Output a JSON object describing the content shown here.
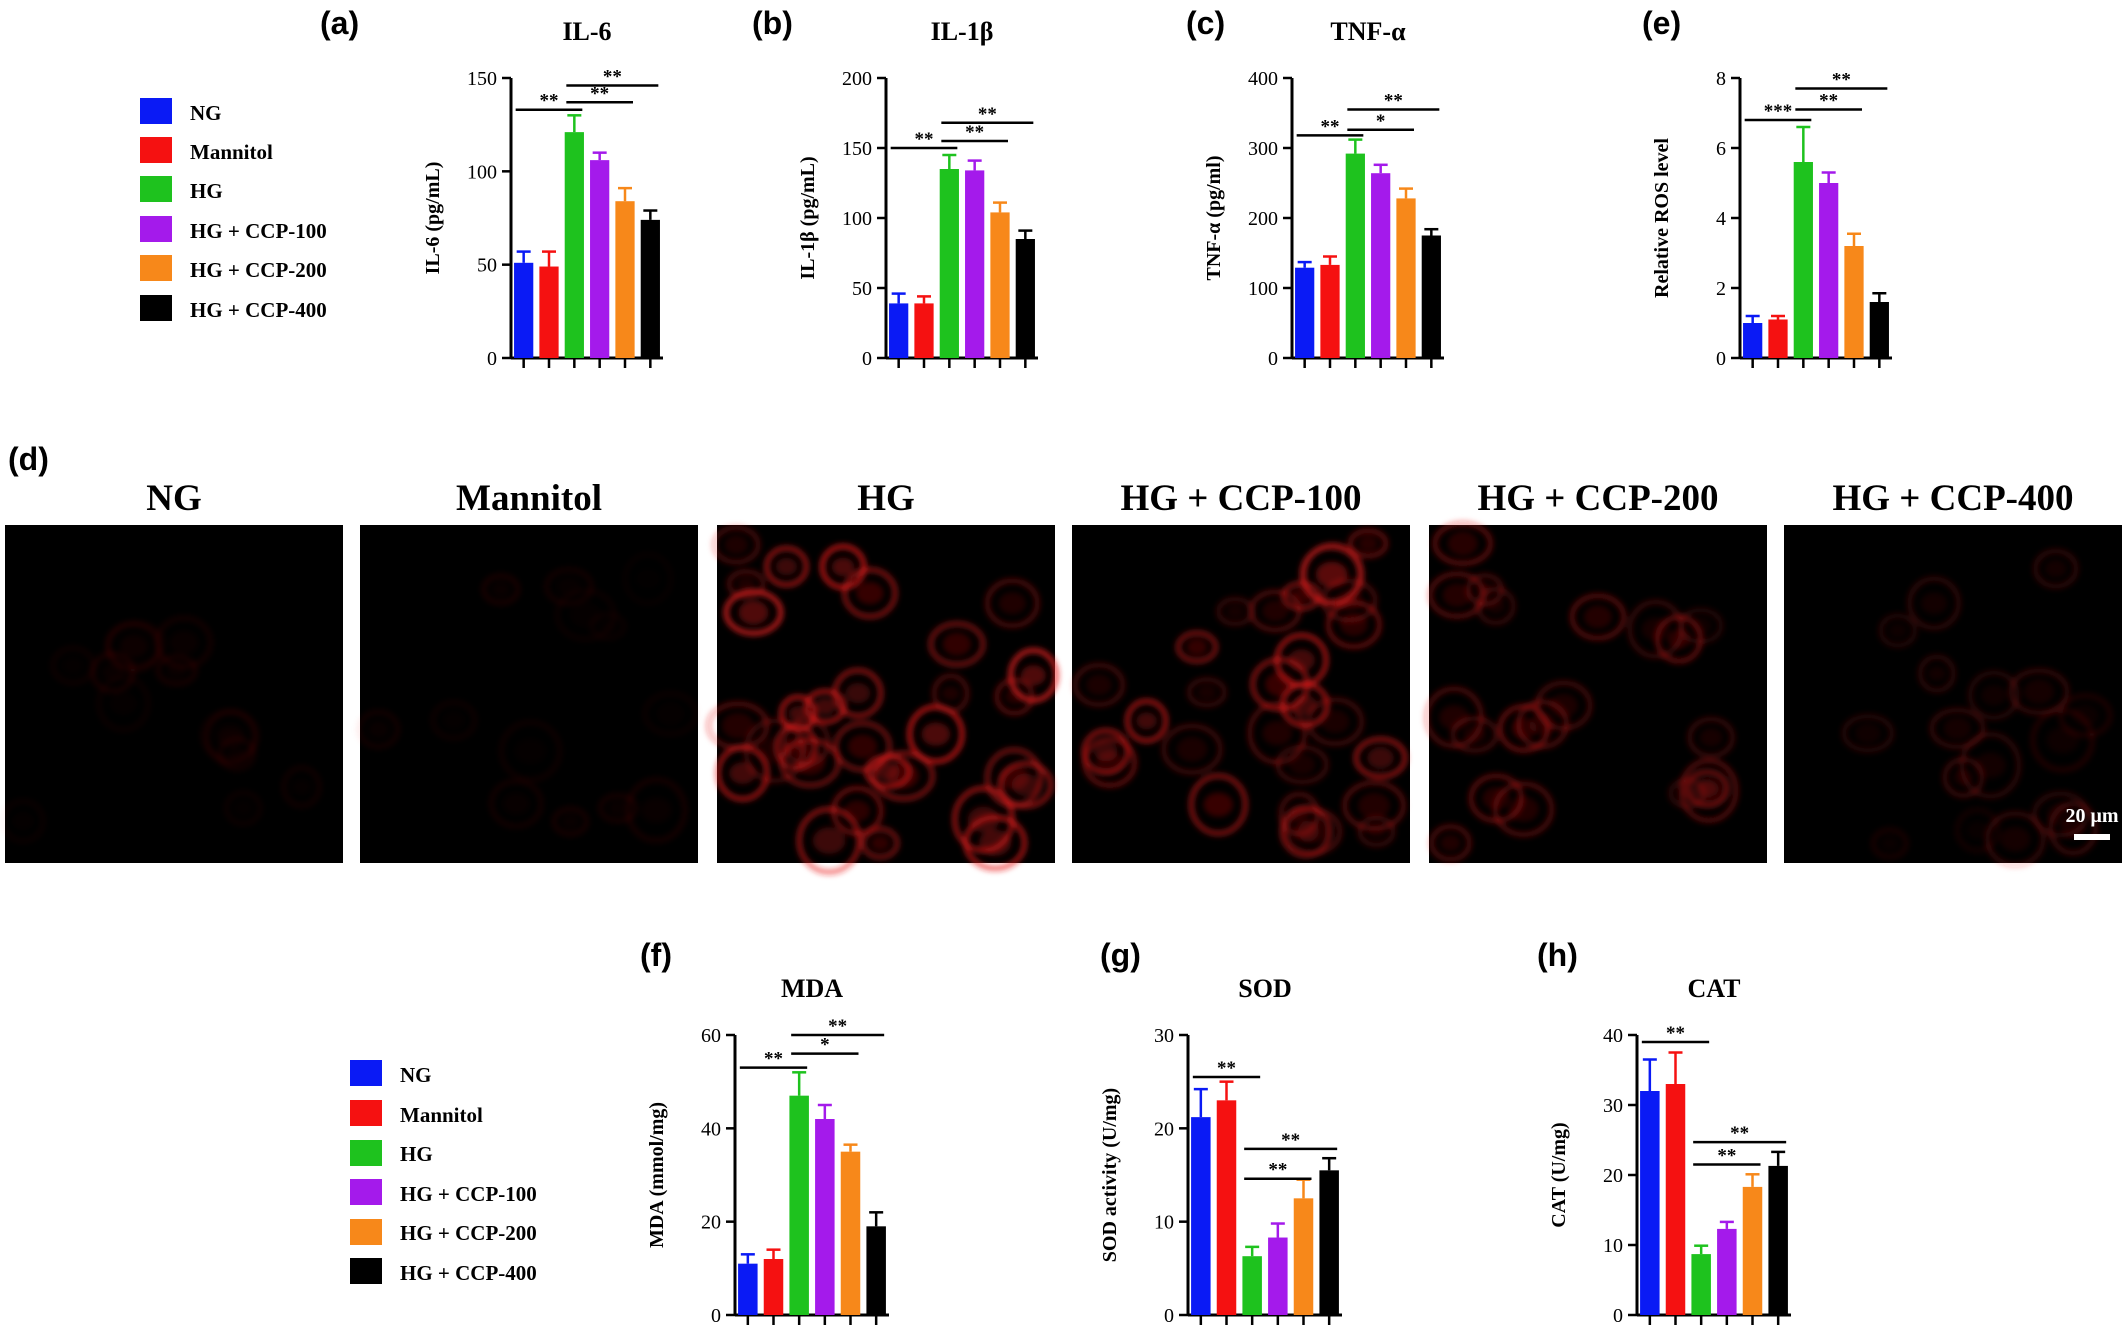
{
  "groups": [
    "NG",
    "Mannitol",
    "HG",
    "HG + CCP-100",
    "HG + CCP-200",
    "HG + CCP-400"
  ],
  "colors": [
    "#0a1af5",
    "#f51111",
    "#1ec21e",
    "#a41aeb",
    "#f7881a",
    "#000000"
  ],
  "chart_data": [
    {
      "panel": "(a)",
      "type": "bar",
      "title": "IL-6",
      "ylabel": "IL-6 (pg/mL)",
      "ylim": [
        0,
        150
      ],
      "yticks": [
        0,
        50,
        100,
        150
      ],
      "categories": [
        "NG",
        "Mannitol",
        "HG",
        "HG + CCP-100",
        "HG + CCP-200",
        "HG + CCP-400"
      ],
      "values": [
        51,
        49,
        121,
        106,
        84,
        74
      ],
      "errors": [
        6,
        8,
        9,
        4,
        7,
        5
      ],
      "significance": [
        {
          "from": 0,
          "to": 2,
          "label": "**",
          "y": 133
        },
        {
          "from": 2,
          "to": 4,
          "label": "**",
          "y": 137
        },
        {
          "from": 2,
          "to": 5,
          "label": "**",
          "y": 146
        }
      ]
    },
    {
      "panel": "(b)",
      "type": "bar",
      "title": "IL-1β",
      "ylabel": "IL-1β (pg/mL)",
      "ylim": [
        0,
        200
      ],
      "yticks": [
        0,
        50,
        100,
        150,
        200
      ],
      "categories": [
        "NG",
        "Mannitol",
        "HG",
        "HG + CCP-100",
        "HG + CCP-200",
        "HG + CCP-400"
      ],
      "values": [
        39,
        39,
        135,
        134,
        104,
        85
      ],
      "errors": [
        7,
        5,
        10,
        7,
        7,
        6
      ],
      "significance": [
        {
          "from": 0,
          "to": 2,
          "label": "**",
          "y": 150
        },
        {
          "from": 2,
          "to": 4,
          "label": "**",
          "y": 155
        },
        {
          "from": 2,
          "to": 5,
          "label": "**",
          "y": 168
        }
      ]
    },
    {
      "panel": "(c)",
      "type": "bar",
      "title": "TNF-α",
      "ylabel": "TNF-α (pg/ml)",
      "ylim": [
        0,
        400
      ],
      "yticks": [
        0,
        100,
        200,
        300,
        400
      ],
      "categories": [
        "NG",
        "Mannitol",
        "HG",
        "HG + CCP-100",
        "HG + CCP-200",
        "HG + CCP-400"
      ],
      "values": [
        129,
        133,
        292,
        264,
        228,
        175
      ],
      "errors": [
        8,
        12,
        20,
        12,
        14,
        9
      ],
      "significance": [
        {
          "from": 0,
          "to": 2,
          "label": "**",
          "y": 318
        },
        {
          "from": 2,
          "to": 4,
          "label": "*",
          "y": 326
        },
        {
          "from": 2,
          "to": 5,
          "label": "**",
          "y": 355
        }
      ]
    },
    {
      "panel": "(e)",
      "type": "bar",
      "title": "",
      "ylabel": "Relative ROS level",
      "ylim": [
        0,
        8
      ],
      "yticks": [
        0,
        2,
        4,
        6,
        8
      ],
      "categories": [
        "NG",
        "Mannitol",
        "HG",
        "HG + CCP-100",
        "HG + CCP-200",
        "HG + CCP-400"
      ],
      "values": [
        1.0,
        1.1,
        5.6,
        5.0,
        3.2,
        1.6
      ],
      "errors": [
        0.2,
        0.1,
        1.0,
        0.3,
        0.35,
        0.25
      ],
      "significance": [
        {
          "from": 0,
          "to": 2,
          "label": "***",
          "y": 6.8
        },
        {
          "from": 2,
          "to": 4,
          "label": "**",
          "y": 7.1
        },
        {
          "from": 2,
          "to": 5,
          "label": "**",
          "y": 7.7
        }
      ]
    },
    {
      "panel": "(f)",
      "type": "bar",
      "title": "MDA",
      "ylabel": "MDA (mmol/mg)",
      "ylim": [
        0,
        60
      ],
      "yticks": [
        0,
        20,
        40,
        60
      ],
      "categories": [
        "NG",
        "Mannitol",
        "HG",
        "HG + CCP-100",
        "HG + CCP-200",
        "HG + CCP-400"
      ],
      "values": [
        11,
        12,
        47,
        42,
        35,
        19
      ],
      "errors": [
        2,
        2,
        5,
        3,
        1.5,
        3
      ],
      "significance": [
        {
          "from": 0,
          "to": 2,
          "label": "**",
          "y": 53
        },
        {
          "from": 2,
          "to": 4,
          "label": "*",
          "y": 56
        },
        {
          "from": 2,
          "to": 5,
          "label": "**",
          "y": 60
        }
      ]
    },
    {
      "panel": "(g)",
      "type": "bar",
      "title": "SOD",
      "ylabel": "SOD activity (U/mg)",
      "ylim": [
        0,
        30
      ],
      "yticks": [
        0,
        10,
        20,
        30
      ],
      "categories": [
        "NG",
        "Mannitol",
        "HG",
        "HG + CCP-100",
        "HG + CCP-200",
        "HG + CCP-400"
      ],
      "values": [
        21.2,
        23.0,
        6.3,
        8.3,
        12.5,
        15.5
      ],
      "errors": [
        3,
        2,
        1,
        1.5,
        2,
        1.3
      ],
      "significance": [
        {
          "from": 0,
          "to": 2,
          "label": "**",
          "y": 25.5
        },
        {
          "from": 2,
          "to": 4,
          "label": "**",
          "y": 14.6
        },
        {
          "from": 2,
          "to": 5,
          "label": "**",
          "y": 17.8
        }
      ]
    },
    {
      "panel": "(h)",
      "type": "bar",
      "title": "CAT",
      "ylabel": "CAT (U/mg)",
      "ylim": [
        0,
        40
      ],
      "yticks": [
        0,
        10,
        20,
        30,
        40
      ],
      "categories": [
        "NG",
        "Mannitol",
        "HG",
        "HG + CCP-100",
        "HG + CCP-200",
        "HG + CCP-400"
      ],
      "values": [
        32,
        33,
        8.7,
        12.3,
        18.3,
        21.3
      ],
      "errors": [
        4.5,
        4.5,
        1.2,
        1,
        1.8,
        2
      ],
      "significance": [
        {
          "from": 0,
          "to": 2,
          "label": "**",
          "y": 39
        },
        {
          "from": 2,
          "to": 4,
          "label": "**",
          "y": 21.5
        },
        {
          "from": 2,
          "to": 5,
          "label": "**",
          "y": 24.7
        }
      ]
    }
  ],
  "microscopy": {
    "panel": "(d)",
    "titles": [
      "NG",
      "Mannitol",
      "HG",
      "HG + CCP-100",
      "HG + CCP-200",
      "HG + CCP-400"
    ],
    "fluorescence_intensity": [
      0.12,
      0.12,
      0.95,
      0.8,
      0.5,
      0.32
    ],
    "scale_bar_label": "20 μm"
  }
}
